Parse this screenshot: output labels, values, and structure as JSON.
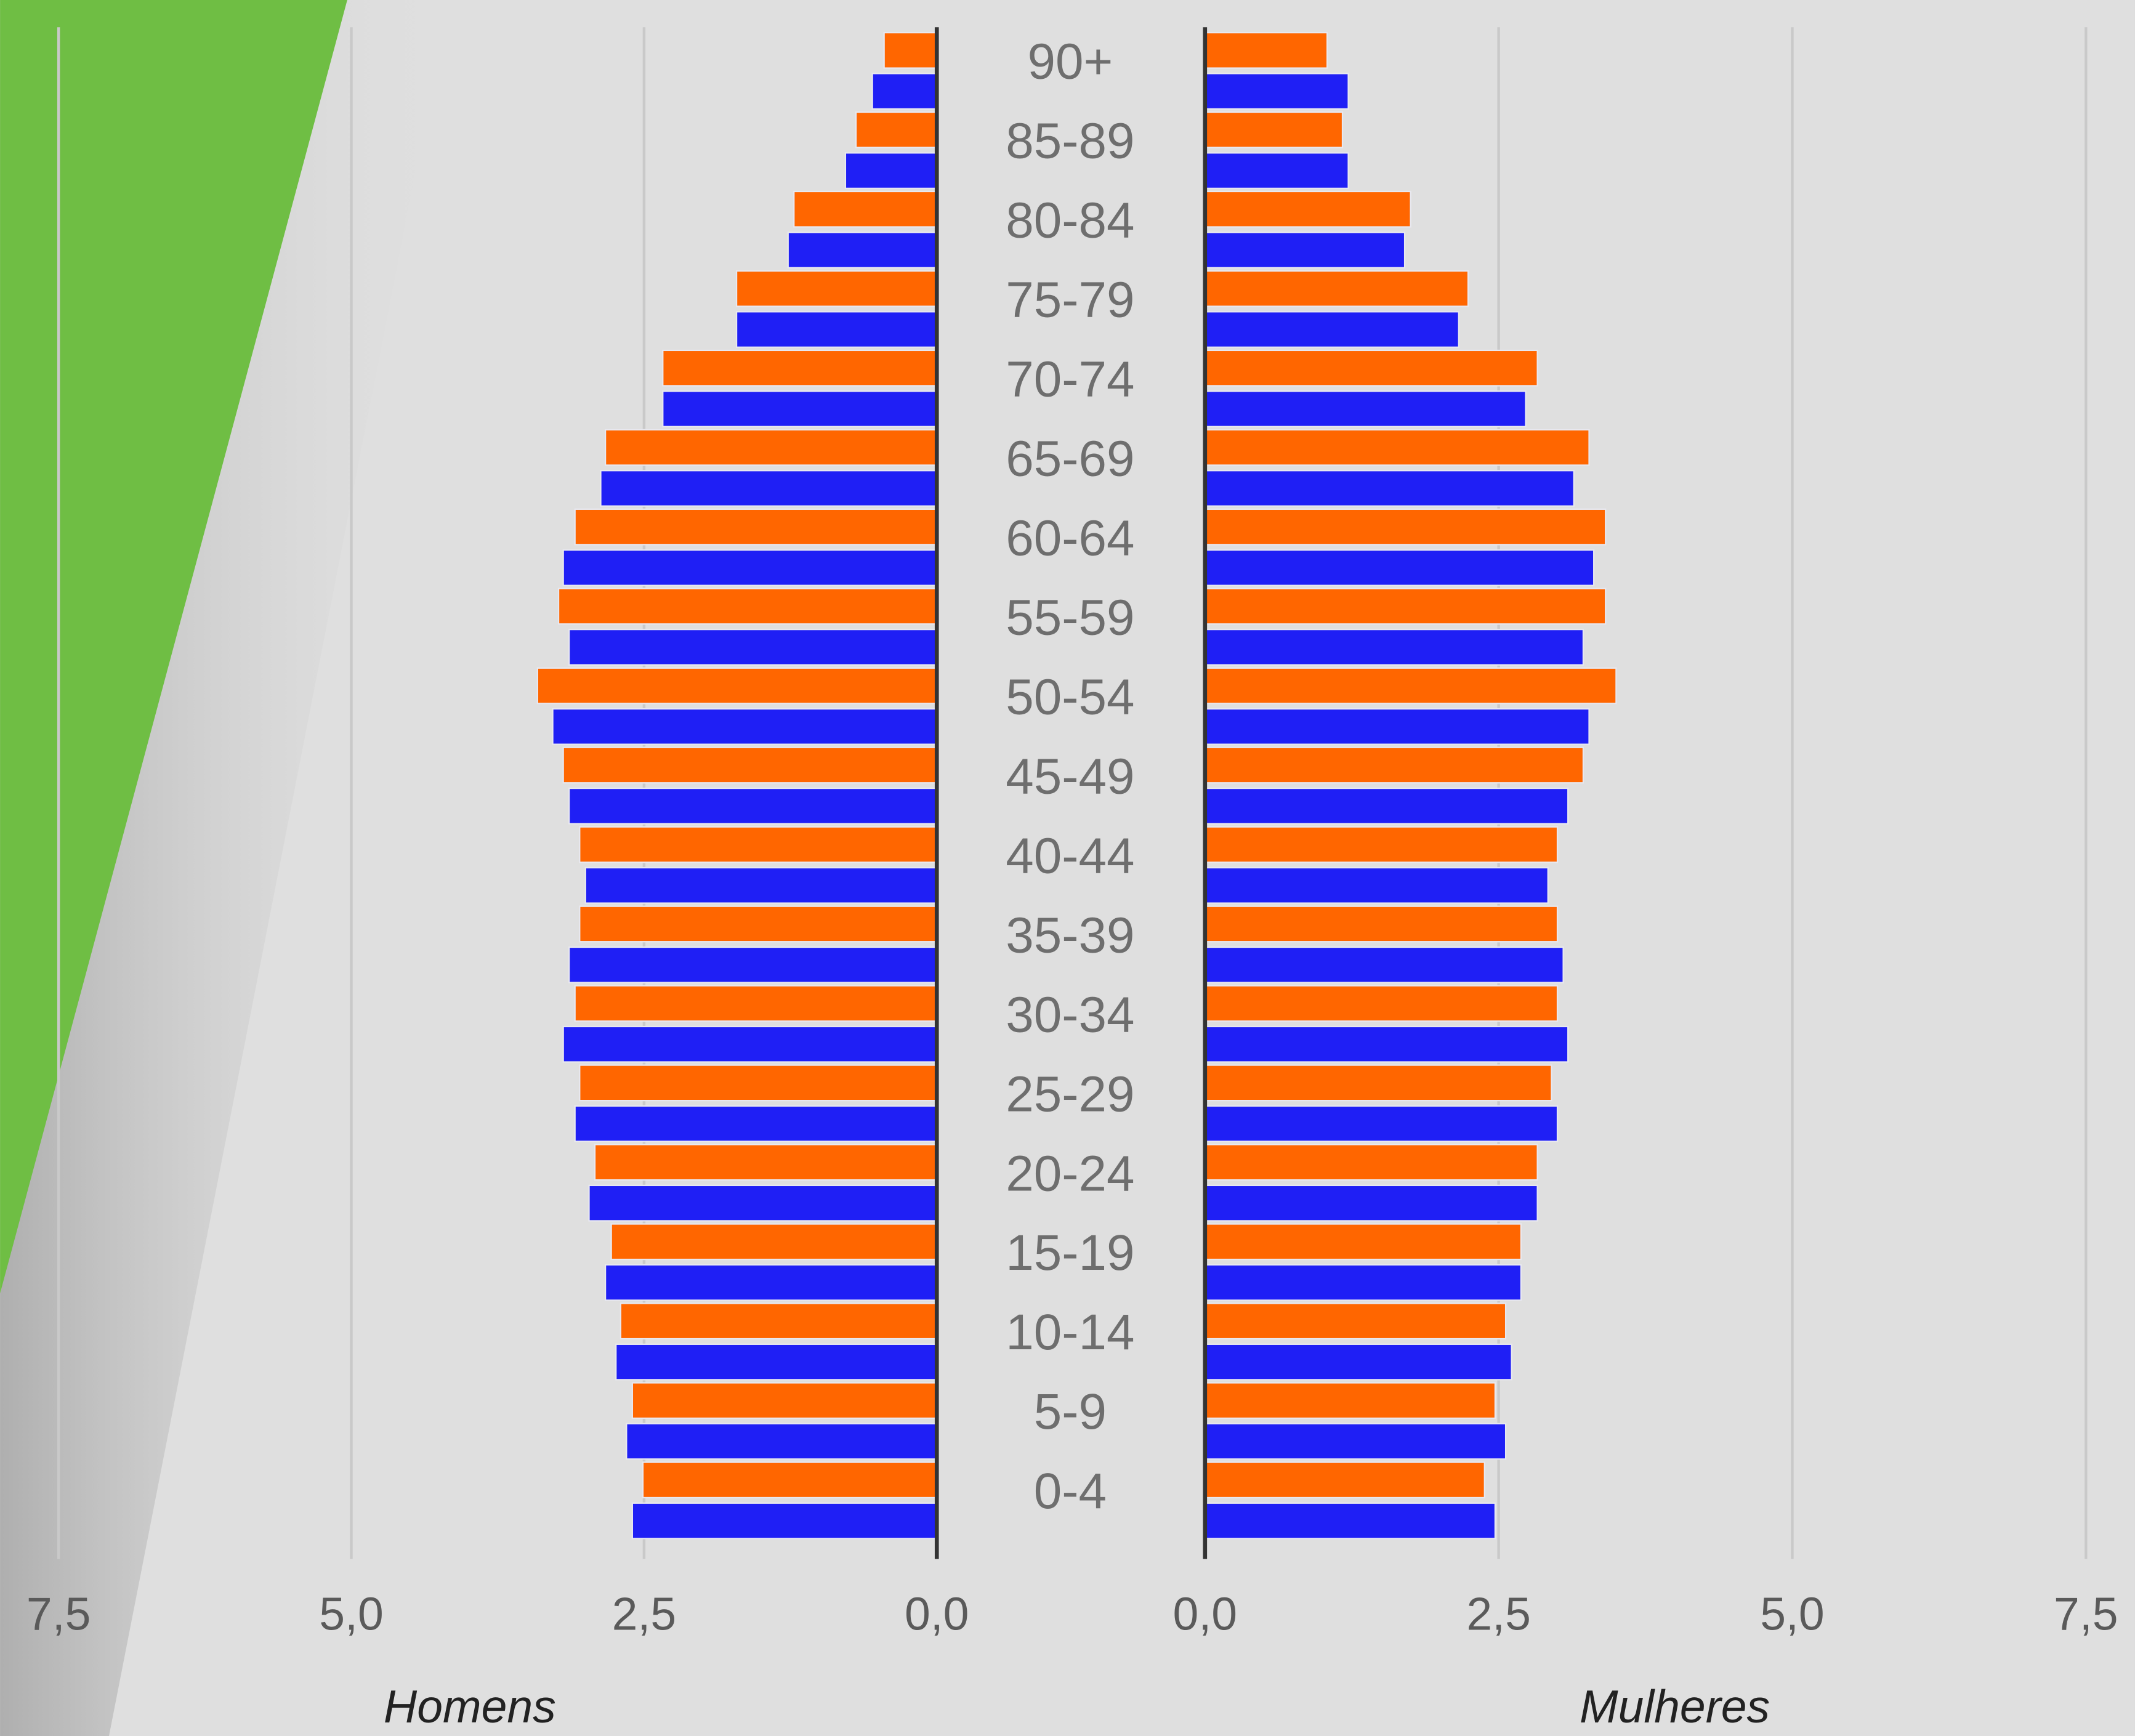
{
  "chart_data": {
    "type": "pyramid",
    "categories": [
      "90+",
      "85-89",
      "80-84",
      "75-79",
      "70-74",
      "65-69",
      "60-64",
      "55-59",
      "50-54",
      "45-49",
      "40-44",
      "35-39",
      "30-34",
      "25-29",
      "20-24",
      "15-19",
      "10-14",
      "5-9",
      "0-4"
    ],
    "grid": true,
    "left": {
      "label": "Homens",
      "xlim": [
        0,
        7.5
      ],
      "xticks": [
        {
          "value": 0,
          "label": "0,0"
        },
        {
          "value": 2.5,
          "label": "2,5"
        },
        {
          "value": 5,
          "label": "5,0"
        },
        {
          "value": 7.5,
          "label": "7,5"
        }
      ],
      "series": [
        {
          "color": "#ff6600",
          "values": [
            0.45,
            0.69,
            1.22,
            1.71,
            2.34,
            2.83,
            3.09,
            3.23,
            3.41,
            3.19,
            3.05,
            3.05,
            3.09,
            3.05,
            2.92,
            2.78,
            2.7,
            2.6,
            2.51
          ]
        },
        {
          "color": "#1f1ff5",
          "values": [
            0.55,
            0.78,
            1.27,
            1.71,
            2.34,
            2.87,
            3.19,
            3.14,
            3.28,
            3.14,
            3.0,
            3.14,
            3.19,
            3.09,
            2.97,
            2.83,
            2.74,
            2.65,
            2.6
          ]
        }
      ]
    },
    "right": {
      "label": "Mulheres",
      "xlim": [
        0,
        7.5
      ],
      "xticks": [
        {
          "value": 0,
          "label": "0,0"
        },
        {
          "value": 2.5,
          "label": "2,5"
        },
        {
          "value": 5,
          "label": "5,0"
        },
        {
          "value": 7.5,
          "label": "7,5"
        }
      ],
      "series": [
        {
          "color": "#ff6600",
          "values": [
            1.04,
            1.17,
            1.75,
            2.24,
            2.83,
            3.27,
            3.41,
            3.41,
            3.5,
            3.22,
            3.0,
            3.0,
            3.0,
            2.95,
            2.83,
            2.69,
            2.56,
            2.47,
            2.38
          ]
        },
        {
          "color": "#1f1ff5",
          "values": [
            1.22,
            1.22,
            1.7,
            2.16,
            2.73,
            3.14,
            3.31,
            3.22,
            3.27,
            3.09,
            2.92,
            3.05,
            3.09,
            3.0,
            2.83,
            2.69,
            2.61,
            2.56,
            2.47
          ]
        }
      ]
    }
  }
}
